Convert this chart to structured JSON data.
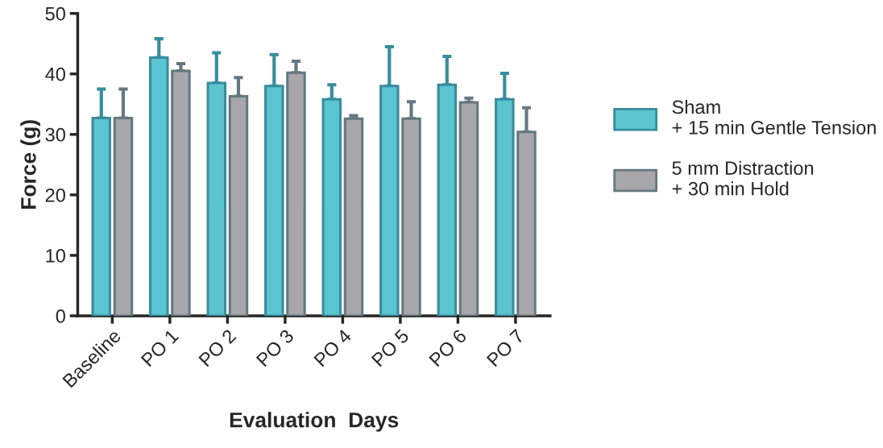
{
  "chart_data": {
    "type": "bar",
    "xlabel": "Evaluation  Days",
    "ylabel": "Force (g)",
    "categories": [
      "Baseline",
      "PO 1",
      "PO 2",
      "PO 3",
      "PO 4",
      "PO 5",
      "PO 6",
      "PO 7"
    ],
    "series": [
      {
        "name": "Sham\n+ 15 min Gentle Tension",
        "color": "#5bc4d1",
        "values": [
          32.7,
          42.7,
          38.5,
          38.0,
          35.8,
          38.0,
          38.2,
          35.8
        ],
        "errors": [
          [
            32.7,
            37.5
          ],
          [
            42.7,
            45.8
          ],
          [
            38.5,
            43.5
          ],
          [
            38.0,
            43.2
          ],
          [
            35.8,
            38.2
          ],
          [
            38.0,
            44.5
          ],
          [
            38.2,
            42.9
          ],
          [
            35.8,
            40.1
          ]
        ]
      },
      {
        "name": "5 mm Distraction\n+ 30 min Hold",
        "color": "#a7a7ab",
        "values": [
          32.7,
          40.5,
          36.3,
          40.2,
          32.6,
          32.6,
          35.3,
          30.4
        ],
        "errors": [
          [
            32.7,
            37.5
          ],
          [
            40.5,
            41.7
          ],
          [
            36.3,
            39.4
          ],
          [
            40.2,
            42.1
          ],
          [
            32.6,
            33.1
          ],
          [
            32.6,
            35.4
          ],
          [
            35.3,
            36.0
          ],
          [
            30.4,
            34.4
          ]
        ]
      }
    ],
    "ylim": [
      0,
      50
    ],
    "yticks": [
      0,
      10,
      20,
      30,
      40,
      50
    ],
    "grid": false,
    "legend": "right"
  }
}
